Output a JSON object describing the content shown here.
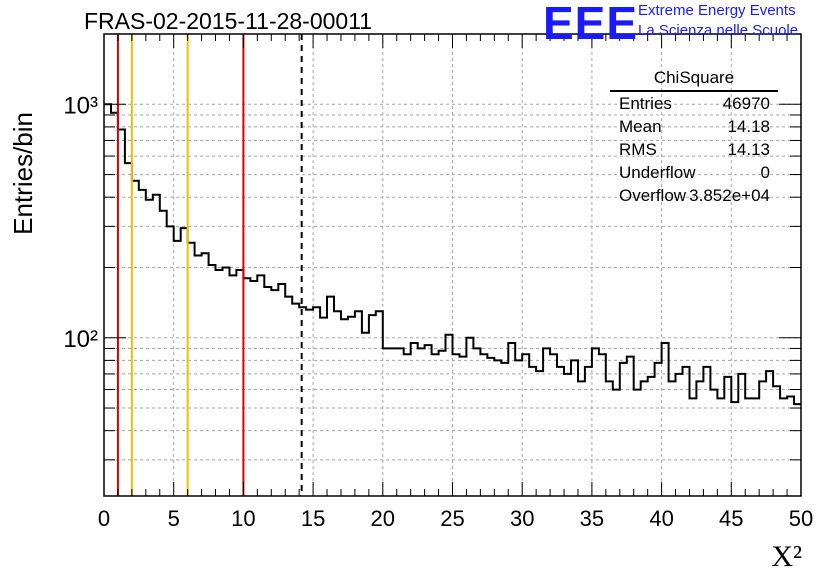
{
  "title": "FRAS-02-2015-11-28-00011",
  "logo": {
    "mark": "EEE",
    "line1": "Extreme Energy Events",
    "line2": "La Scienza nelle Scuole",
    "color": "#1a1aff"
  },
  "stats": {
    "name": "ChiSquare",
    "rows": [
      {
        "label": "Entries",
        "value": "46970"
      },
      {
        "label": "Mean",
        "value": "14.18"
      },
      {
        "label": "RMS",
        "value": "14.13"
      },
      {
        "label": "Underflow",
        "value": "0"
      },
      {
        "label": "Overflow",
        "value": "3.852e+04"
      }
    ]
  },
  "chart_data": {
    "type": "histogram",
    "title": "FRAS-02-2015-11-28-00011",
    "xlabel": "X²",
    "ylabel": "Entries/bin",
    "xlim": [
      0,
      50
    ],
    "ylim": [
      21,
      2000
    ],
    "yscale": "log",
    "grid": true,
    "bin_width": 0.5,
    "x_ticks": [
      0,
      5,
      10,
      15,
      20,
      25,
      30,
      35,
      40,
      45,
      50
    ],
    "x_tick_labels": [
      "0",
      "5",
      "10",
      "15",
      "20",
      "25",
      "30",
      "35",
      "40",
      "45",
      "50"
    ],
    "y_ticks": [
      100,
      1000
    ],
    "y_tick_labels": [
      "10²",
      "10³"
    ],
    "values": [
      1000,
      920,
      780,
      560,
      470,
      430,
      390,
      410,
      350,
      300,
      260,
      295,
      255,
      225,
      230,
      205,
      195,
      200,
      185,
      195,
      180,
      175,
      185,
      165,
      160,
      170,
      150,
      140,
      135,
      132,
      135,
      122,
      150,
      130,
      120,
      123,
      130,
      105,
      125,
      130,
      90,
      90,
      90,
      85,
      95,
      90,
      93,
      85,
      88,
      103,
      85,
      83,
      100,
      90,
      85,
      82,
      80,
      78,
      95,
      80,
      85,
      75,
      72,
      90,
      85,
      75,
      70,
      80,
      65,
      75,
      90,
      85,
      65,
      60,
      78,
      83,
      60,
      65,
      68,
      78,
      95,
      65,
      70,
      75,
      55,
      65,
      75,
      60,
      55,
      68,
      53,
      70,
      55,
      55,
      65,
      72,
      62,
      55,
      56,
      52
    ],
    "vertical_lines": [
      {
        "x": 1,
        "color": "#dd0000",
        "style": "solid"
      },
      {
        "x": 2,
        "color": "#f0c000",
        "style": "solid"
      },
      {
        "x": 6,
        "color": "#f0c000",
        "style": "solid"
      },
      {
        "x": 10,
        "color": "#dd0000",
        "style": "solid"
      },
      {
        "x": 14.18,
        "color": "#000000",
        "style": "dashed"
      }
    ]
  }
}
